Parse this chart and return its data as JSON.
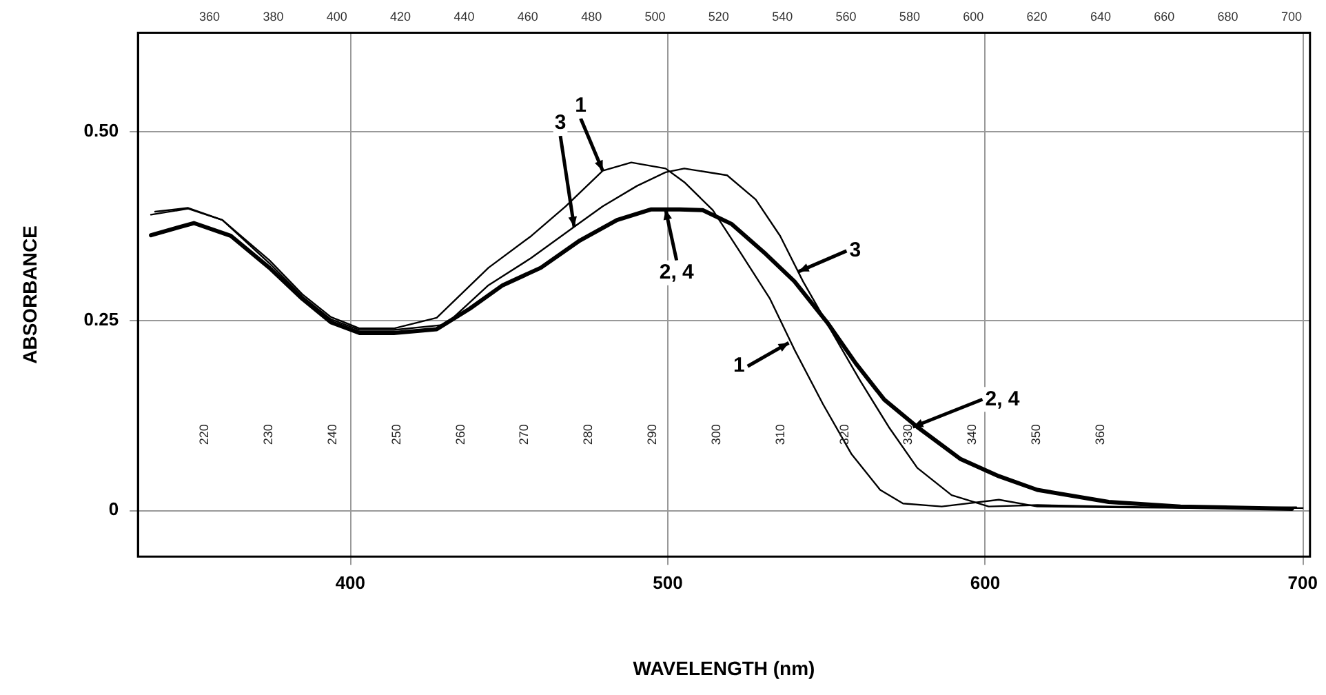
{
  "chart_data": {
    "type": "line",
    "xlabel": "WAVELENGTH (nm)",
    "ylabel": "ABSORBANCE",
    "xlim": [
      333.1,
      702.3
    ],
    "xticks": [
      400,
      500,
      600,
      700
    ],
    "ylim": [
      -0.061,
      0.63
    ],
    "yticks": [
      0,
      0.25,
      {
        "value": 0.5,
        "label": "0.50"
      }
    ],
    "x2lim": [
      337.5,
      705.8
    ],
    "x2ticks": [
      360,
      380,
      400,
      420,
      440,
      460,
      480,
      500,
      520,
      540,
      560,
      580,
      600,
      620,
      640,
      660,
      680,
      700
    ],
    "grid": true,
    "legend": false,
    "marker": "none",
    "line_style": "solid",
    "series": [
      {
        "color": "#000000",
        "x": [
          337.2,
          348.9,
          359.7,
          374.5,
          384.9,
          393.9,
          402.9,
          413.7,
          427.2,
          443.5,
          457,
          467.8,
          479.5,
          488.5,
          499.3,
          505.2,
          514.2,
          523.2,
          532.2,
          539.9,
          548.9,
          557.9,
          566.9,
          574.1,
          586.3,
          604.3,
          616.4,
          640,
          670,
          700
        ],
        "values": [
          0.39,
          0.398,
          0.383,
          0.33,
          0.285,
          0.255,
          0.24,
          0.24,
          0.254,
          0.32,
          0.362,
          0.401,
          0.448,
          0.459,
          0.451,
          0.433,
          0.396,
          0.338,
          0.279,
          0.212,
          0.14,
          0.074,
          0.027,
          0.009,
          0.005,
          0.014,
          0.005,
          0.004,
          0.003,
          0.003
        ]
      },
      {
        "color": "#000000",
        "x": [
          338.5,
          348.9,
          359.7,
          374.5,
          384.9,
          393.9,
          402.9,
          413.7,
          430,
          443.5,
          457,
          470.5,
          479.5,
          490.3,
          499.3,
          505.2,
          518.7,
          527.7,
          535.4,
          542.6,
          551.6,
          560.6,
          569.6,
          578.6,
          589.4,
          601.1,
          616.4,
          640,
          670,
          698
        ],
        "values": [
          0.394,
          0.399,
          0.383,
          0.326,
          0.282,
          0.252,
          0.238,
          0.238,
          0.245,
          0.297,
          0.333,
          0.374,
          0.401,
          0.428,
          0.446,
          0.451,
          0.442,
          0.41,
          0.362,
          0.302,
          0.236,
          0.171,
          0.11,
          0.056,
          0.02,
          0.005,
          0.007,
          0.005,
          0.003,
          0.004
        ]
      },
      {
        "color": "#000000",
        "x": [
          337.2,
          350.7,
          362.4,
          374.5,
          384.9,
          393.9,
          402.9,
          413.7,
          427.2,
          437.6,
          448,
          460,
          472.3,
          484,
          494.8,
          503.8,
          511,
          520,
          530.9,
          539.9,
          550.2,
          559.2,
          568.2,
          578.6,
          592.1,
          604.3,
          616.4,
          638.9,
          661.5,
          696.6
        ],
        "values": [
          0.363,
          0.379,
          0.362,
          0.32,
          0.279,
          0.248,
          0.234,
          0.234,
          0.239,
          0.266,
          0.297,
          0.32,
          0.356,
          0.383,
          0.397,
          0.397,
          0.396,
          0.378,
          0.338,
          0.302,
          0.248,
          0.194,
          0.146,
          0.11,
          0.068,
          0.045,
          0.027,
          0.011,
          0.005,
          0.002
        ]
      }
    ],
    "annotations": [
      "220",
      "230",
      "240",
      "250",
      "260",
      "270",
      "280",
      "290",
      "300",
      "310",
      "320",
      "330",
      "340",
      "350",
      "360",
      {
        "text": "1",
        "x": 479.5,
        "y": 0.448
      },
      {
        "text": "3",
        "x": 470.5,
        "y": 0.374
      },
      {
        "text": "2, 4",
        "x": 499.3,
        "y": 0.397
      },
      {
        "text": "3",
        "x": 541.2,
        "y": 0.315
      },
      {
        "text": "1",
        "x": 538.1,
        "y": 0.221
      },
      {
        "text": "2, 4",
        "x": 577.2,
        "y": 0.11
      }
    ]
  }
}
